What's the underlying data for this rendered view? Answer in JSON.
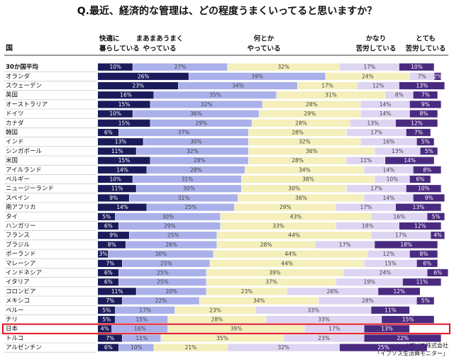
{
  "chart_data": {
    "type": "stacked-bar-horizontal",
    "title": "Q.最近、経済的な管理は、どの程度うまくいってると思いますか？",
    "category_header": "国",
    "source": [
      "イプソス株式会社",
      "「イプソス生活費モニター」"
    ],
    "categories": [
      "30か国平均",
      "オランダ",
      "スウェーデン",
      "英国",
      "オーストラリア",
      "ドイツ",
      "カナダ",
      "韓国",
      "インド",
      "シンガポール",
      "米国",
      "アイルランド",
      "ベルギー",
      "ニュージーランド",
      "スペイン",
      "南アフリカ",
      "タイ",
      "ハンガリー",
      "フランス",
      "ブラジル",
      "ポーランド",
      "マレーシア",
      "インドネシア",
      "イタリア",
      "コロンビア",
      "メキシコ",
      "ペルー",
      "チリ",
      "日本",
      "トルコ",
      "アルゼンチン"
    ],
    "xlim": [
      0,
      100
    ],
    "series": [
      {
        "name": [
          "快適に",
          "暮らしている"
        ],
        "color": "#1b1b5c",
        "values": [
          10,
          26,
          23,
          16,
          15,
          10,
          15,
          6,
          13,
          11,
          15,
          14,
          10,
          11,
          9,
          14,
          5,
          6,
          9,
          8,
          3,
          7,
          6,
          6,
          11,
          7,
          5,
          5,
          4,
          7,
          6
        ],
        "value_labels": [
          "10%",
          "26%",
          "23%",
          "16%",
          "15%",
          "10%",
          "15%",
          "6%",
          "13%",
          "11%",
          "15%",
          "14%",
          "10%",
          "11%",
          "9%",
          "14%",
          "5%",
          "6%",
          "9%",
          "8%",
          "3%",
          "7%",
          "6%",
          "6%",
          "11%",
          "7%",
          "5%",
          "5%",
          "4%",
          "7%",
          "6%"
        ]
      },
      {
        "name": [
          "まあまあうまく",
          "やっている"
        ],
        "color": "#aab0ea",
        "values": [
          27,
          39,
          34,
          35,
          32,
          36,
          29,
          37,
          30,
          32,
          28,
          28,
          31,
          30,
          31,
          25,
          30,
          29,
          25,
          26,
          30,
          25,
          25,
          25,
          20,
          22,
          17,
          15,
          16,
          11,
          10
        ],
        "value_labels": [
          "27%",
          "39%",
          "34%",
          "35%",
          "32%",
          "36%",
          "29%",
          "37%",
          "30%",
          "32%",
          "28%",
          "28%",
          "31%",
          "30%",
          "31%",
          "25%",
          "30%",
          "29%",
          "25%",
          "26%",
          "30%",
          "25%",
          "25%",
          "25%",
          "20%",
          "22%",
          "17%",
          "15%",
          "16%",
          "11%",
          "10%"
        ]
      },
      {
        "name": [
          "何とか",
          "やっている"
        ],
        "color": "#f4efbb",
        "values": [
          32,
          24,
          17,
          31,
          28,
          29,
          28,
          28,
          32,
          36,
          28,
          34,
          38,
          30,
          36,
          29,
          43,
          33,
          44,
          28,
          44,
          44,
          39,
          37,
          23,
          34,
          23,
          28,
          39,
          35,
          21
        ],
        "value_labels": [
          "32%",
          "24%",
          "17%",
          "31%",
          "28%",
          "29%",
          "28%",
          "28%",
          "32%",
          "36%",
          "28%",
          "34%",
          "38%",
          "30%",
          "36%",
          "29%",
          "43%",
          "33%",
          "44%",
          "28%",
          "44%",
          "44%",
          "39%",
          "37%",
          "23%",
          "34%",
          "23%",
          "28%",
          "39%",
          "35%",
          "21%"
        ]
      },
      {
        "name": [
          "かなり",
          "苦労している"
        ],
        "color": "#ddd5f2",
        "values": [
          17,
          7,
          12,
          8,
          14,
          14,
          13,
          17,
          16,
          13,
          11,
          14,
          10,
          17,
          14,
          17,
          16,
          18,
          17,
          17,
          12,
          15,
          24,
          19,
          26,
          28,
          33,
          33,
          17,
          23,
          32
        ],
        "value_labels": [
          "17%",
          "7%",
          "12%",
          "8%",
          "14%",
          "14%",
          "13%",
          "17%",
          "16%",
          "13%",
          "11%",
          "14%",
          "10%",
          "17%",
          "14%",
          "17%",
          "16%",
          "18%",
          "17%",
          "17%",
          "12%",
          "15%",
          "24%",
          "19%",
          "26%",
          "28%",
          "33%",
          "33%",
          "17%",
          "23%",
          "32%"
        ]
      },
      {
        "name": [
          "とても",
          "苦労している"
        ],
        "color": "#4a2a80",
        "values": [
          10,
          2,
          13,
          7,
          9,
          8,
          12,
          7,
          5,
          5,
          14,
          8,
          6,
          10,
          9,
          13,
          5,
          12,
          4,
          18,
          8,
          6,
          6,
          11,
          12,
          5,
          11,
          15,
          13,
          22,
          25
        ],
        "value_labels": [
          "10%",
          "2%",
          "13%",
          "7%",
          "9%",
          "8%",
          "12%",
          "7%",
          "5%",
          "5%",
          "14%",
          "8%",
          "6%",
          "10%",
          "9%",
          "13%",
          "5%",
          "12%",
          "4%",
          "18%",
          "8%",
          "6%",
          "6%",
          "11%",
          "12%",
          "5%",
          "11%",
          "15%",
          "13%",
          "22%",
          "25%"
        ]
      }
    ]
  }
}
